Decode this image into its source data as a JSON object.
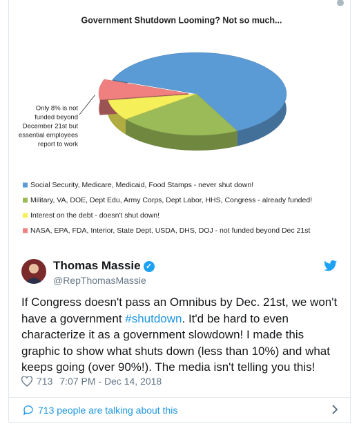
{
  "chart": {
    "type": "pie",
    "title": "Government Shutdown Looming?  Not so much...",
    "annotation": [
      "Only 8% is not",
      "funded beyond",
      "December 21st but",
      "essential employees",
      "report to work"
    ],
    "series": [
      {
        "name": "Social Security, Medicare, Medicaid, Food Stamps - never shut down!",
        "color": "#5b9bd5",
        "value": 62
      },
      {
        "name": "Military, VA, DOE, Dept Edu, Army Corps, Dept Labor, HHS, Congress - already funded!",
        "color": "#9bbb59",
        "value": 22
      },
      {
        "name": "Interest on the debt - doesn't shut down!",
        "color": "#f5ef5a",
        "value": 8
      },
      {
        "name": "NASA, EPA, FDA, Interior, State Dept, USDA, DHS, DOJ - not funded beyond Dec 21st",
        "color": "#f08080",
        "value": 8
      }
    ]
  },
  "tweet": {
    "author": "Thomas Massie",
    "handle": "@RepThomasMassie",
    "text_before": "If Congress doesn't pass an Omnibus by Dec. 21st, we won't have a government ",
    "hashtag": "#shutdown",
    "text_after": ". It'd be hard to even characterize it as a government slowdown! I made this graphic to show what shuts down (less than 10%) and what keeps going (over 90%!). The media isn't telling you this!",
    "likes": 713,
    "timestamp": "7:07 PM - Dec 14, 2018",
    "talking": "713 people are talking about this"
  }
}
